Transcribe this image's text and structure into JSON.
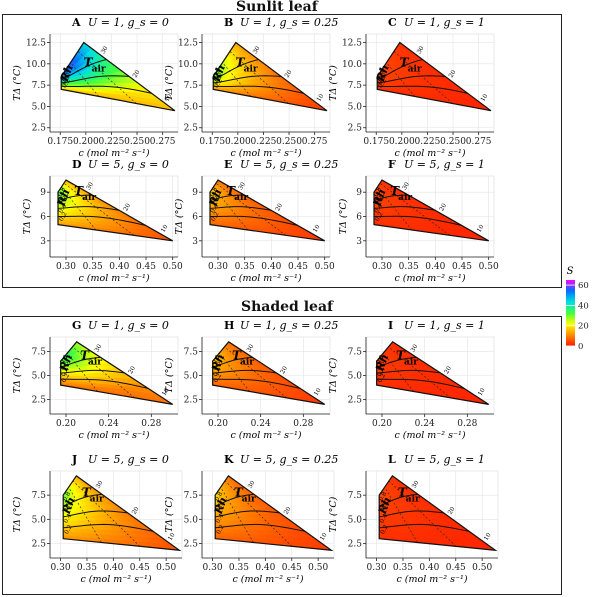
{
  "sections": [
    {
      "title": "Sunlit leaf"
    },
    {
      "title": "Shaded leaf"
    }
  ],
  "legend": {
    "title": "S",
    "ticks": [
      "60",
      "40",
      "20",
      "0"
    ],
    "tick_values": [
      60,
      40,
      20,
      0
    ],
    "range": [
      0,
      65
    ],
    "colors": [
      "#ff1a00",
      "#ff8c00",
      "#ffff00",
      "#40ff40",
      "#00e0e0",
      "#0070ff",
      "#ff00ff"
    ]
  },
  "common": {
    "xlabel": "c (mol m⁻² s⁻¹)",
    "ylabel": "TΔ (°C)",
    "rh_label": "Rh",
    "tair_label": "T",
    "tair_sub": "air",
    "rh_ticks": [
      "0.2",
      "0.4",
      "0.6",
      "0.8"
    ],
    "tair_ticks": [
      "30",
      "20",
      "10"
    ]
  },
  "chart_data": [
    {
      "type": "heatmap",
      "letter": "A",
      "title": "U = 1, g_s = 0",
      "xlim": [
        0.165,
        0.29
      ],
      "ylim": [
        2.0,
        13.5
      ],
      "xticks": [
        0.175,
        0.2,
        0.225,
        0.25,
        0.275
      ],
      "xtick_labels": [
        "0.175",
        "0.200",
        "0.225",
        "0.250",
        "0.275"
      ],
      "yticks": [
        2.5,
        5.0,
        7.5,
        10.0,
        12.5
      ],
      "ytick_labels": [
        "2.5",
        "5.0",
        "7.5",
        "10.0",
        "12.5"
      ],
      "corners": {
        "top_left": [
          0.176,
          8.5
        ],
        "top_right": [
          0.198,
          12.5
        ],
        "bottom_right": [
          0.287,
          4.5
        ],
        "bottom_left": [
          0.176,
          7.0
        ]
      },
      "s_range": [
        15,
        62
      ],
      "s_peak": "top-right"
    },
    {
      "type": "heatmap",
      "letter": "B",
      "title": "U = 1, g_s = 0.25",
      "xlim": [
        0.165,
        0.29
      ],
      "ylim": [
        2.0,
        13.5
      ],
      "xticks": [
        0.175,
        0.2,
        0.225,
        0.25,
        0.275
      ],
      "xtick_labels": [
        "0.175",
        "0.200",
        "0.225",
        "0.250",
        "0.275"
      ],
      "yticks": [
        2.5,
        5.0,
        7.5,
        10.0,
        12.5
      ],
      "ytick_labels": [
        "2.5",
        "5.0",
        "7.5",
        "10.0",
        "12.5"
      ],
      "corners": {
        "top_left": [
          0.176,
          8.5
        ],
        "top_right": [
          0.198,
          12.5
        ],
        "bottom_right": [
          0.287,
          4.5
        ],
        "bottom_left": [
          0.176,
          7.0
        ]
      },
      "s_range": [
        3,
        34
      ],
      "s_peak": "top-left"
    },
    {
      "type": "heatmap",
      "letter": "C",
      "title": "U = 1, g_s = 1",
      "xlim": [
        0.165,
        0.29
      ],
      "ylim": [
        2.0,
        13.5
      ],
      "xticks": [
        0.175,
        0.2,
        0.225,
        0.25,
        0.275
      ],
      "xtick_labels": [
        "0.175",
        "0.200",
        "0.225",
        "0.250",
        "0.275"
      ],
      "yticks": [
        2.5,
        5.0,
        7.5,
        10.0,
        12.5
      ],
      "ytick_labels": [
        "2.5",
        "5.0",
        "7.5",
        "10.0",
        "12.5"
      ],
      "corners": {
        "top_left": [
          0.176,
          8.5
        ],
        "top_right": [
          0.198,
          12.5
        ],
        "bottom_right": [
          0.287,
          4.5
        ],
        "bottom_left": [
          0.176,
          7.0
        ]
      },
      "s_range": [
        1,
        5
      ],
      "s_peak": "top-left"
    },
    {
      "type": "heatmap",
      "letter": "D",
      "title": "U = 5, g_s = 0",
      "xlim": [
        0.27,
        0.51
      ],
      "ylim": [
        1.0,
        11.0
      ],
      "xticks": [
        0.3,
        0.35,
        0.4,
        0.45,
        0.5
      ],
      "xtick_labels": [
        "0.30",
        "0.35",
        "0.40",
        "0.45",
        "0.50"
      ],
      "yticks": [
        3,
        6,
        9
      ],
      "ytick_labels": [
        "3",
        "6",
        "9"
      ],
      "corners": {
        "top_left": [
          0.285,
          9.0
        ],
        "top_right": [
          0.3,
          10.5
        ],
        "bottom_right": [
          0.5,
          3.0
        ],
        "bottom_left": [
          0.285,
          5.0
        ]
      },
      "s_range": [
        5,
        35
      ],
      "s_peak": "top-left"
    },
    {
      "type": "heatmap",
      "letter": "E",
      "title": "U = 5, g_s = 0.25",
      "xlim": [
        0.27,
        0.51
      ],
      "ylim": [
        1.0,
        11.0
      ],
      "xticks": [
        0.3,
        0.35,
        0.4,
        0.45,
        0.5
      ],
      "xtick_labels": [
        "0.30",
        "0.35",
        "0.40",
        "0.45",
        "0.50"
      ],
      "yticks": [
        3,
        6,
        9
      ],
      "ytick_labels": [
        "3",
        "6",
        "9"
      ],
      "corners": {
        "top_left": [
          0.285,
          9.0
        ],
        "top_right": [
          0.3,
          10.5
        ],
        "bottom_right": [
          0.5,
          3.0
        ],
        "bottom_left": [
          0.285,
          5.0
        ]
      },
      "s_range": [
        3,
        19
      ],
      "s_peak": "top-left"
    },
    {
      "type": "heatmap",
      "letter": "F",
      "title": "U = 5, g_s = 1",
      "xlim": [
        0.27,
        0.51
      ],
      "ylim": [
        1.0,
        11.0
      ],
      "xticks": [
        0.3,
        0.35,
        0.4,
        0.45,
        0.5
      ],
      "xtick_labels": [
        "0.30",
        "0.35",
        "0.40",
        "0.45",
        "0.50"
      ],
      "yticks": [
        3,
        6,
        9
      ],
      "ytick_labels": [
        "3",
        "6",
        "9"
      ],
      "corners": {
        "top_left": [
          0.285,
          9.0
        ],
        "top_right": [
          0.3,
          10.5
        ],
        "bottom_right": [
          0.5,
          3.0
        ],
        "bottom_left": [
          0.285,
          5.0
        ]
      },
      "s_range": [
        1,
        5
      ],
      "s_peak": "top-left"
    },
    {
      "type": "heatmap",
      "letter": "G",
      "title": "U = 1, g_s = 0",
      "xlim": [
        0.185,
        0.305
      ],
      "ylim": [
        1.0,
        9.0
      ],
      "xticks": [
        0.2,
        0.24,
        0.28
      ],
      "xtick_labels": [
        "0.20",
        "0.24",
        "0.28"
      ],
      "yticks": [
        2.5,
        5.0,
        7.5
      ],
      "ytick_labels": [
        "2.5",
        "5.0",
        "7.5"
      ],
      "corners": {
        "top_left": [
          0.195,
          6.5
        ],
        "top_right": [
          0.21,
          8.5
        ],
        "bottom_right": [
          0.3,
          2.0
        ],
        "bottom_left": [
          0.195,
          4.0
        ]
      },
      "s_range": [
        8,
        38
      ],
      "s_peak": "top-right"
    },
    {
      "type": "heatmap",
      "letter": "H",
      "title": "U = 1, g_s = 0.25",
      "xlim": [
        0.185,
        0.305
      ],
      "ylim": [
        1.0,
        9.0
      ],
      "xticks": [
        0.2,
        0.24,
        0.28
      ],
      "xtick_labels": [
        "0.20",
        "0.24",
        "0.28"
      ],
      "yticks": [
        2.5,
        5.0,
        7.5
      ],
      "ytick_labels": [
        "2.5",
        "5.0",
        "7.5"
      ],
      "corners": {
        "top_left": [
          0.195,
          6.5
        ],
        "top_right": [
          0.21,
          8.5
        ],
        "bottom_right": [
          0.3,
          2.0
        ],
        "bottom_left": [
          0.195,
          4.0
        ]
      },
      "s_range": [
        3,
        18
      ],
      "s_peak": "top-left"
    },
    {
      "type": "heatmap",
      "letter": "I",
      "title": "U = 1, g_s = 1",
      "xlim": [
        0.185,
        0.305
      ],
      "ylim": [
        1.0,
        9.0
      ],
      "xticks": [
        0.2,
        0.24,
        0.28
      ],
      "xtick_labels": [
        "0.20",
        "0.24",
        "0.28"
      ],
      "yticks": [
        2.5,
        5.0,
        7.5
      ],
      "ytick_labels": [
        "2.5",
        "5.0",
        "7.5"
      ],
      "corners": {
        "top_left": [
          0.195,
          6.5
        ],
        "top_right": [
          0.21,
          8.5
        ],
        "bottom_right": [
          0.3,
          2.0
        ],
        "bottom_left": [
          0.195,
          4.0
        ]
      },
      "s_range": [
        1,
        4
      ],
      "s_peak": "top-left"
    },
    {
      "type": "heatmap",
      "letter": "J",
      "title": "U = 5, g_s = 0",
      "xlim": [
        0.28,
        0.53
      ],
      "ylim": [
        1.0,
        10.0
      ],
      "xticks": [
        0.3,
        0.35,
        0.4,
        0.45,
        0.5
      ],
      "xtick_labels": [
        "0.30",
        "0.35",
        "0.40",
        "0.45",
        "0.50"
      ],
      "yticks": [
        2.5,
        5.0,
        7.5
      ],
      "ytick_labels": [
        "2.5",
        "5.0",
        "7.5"
      ],
      "corners": {
        "top_left": [
          0.305,
          7.5
        ],
        "top_right": [
          0.33,
          9.5
        ],
        "bottom_right": [
          0.525,
          1.8
        ],
        "bottom_left": [
          0.305,
          3.0
        ]
      },
      "s_range": [
        5,
        32
      ],
      "s_peak": "top-left"
    },
    {
      "type": "heatmap",
      "letter": "K",
      "title": "U = 5, g_s = 0.25",
      "xlim": [
        0.28,
        0.53
      ],
      "ylim": [
        1.0,
        10.0
      ],
      "xticks": [
        0.3,
        0.35,
        0.4,
        0.45,
        0.5
      ],
      "xtick_labels": [
        "0.30",
        "0.35",
        "0.40",
        "0.45",
        "0.50"
      ],
      "yticks": [
        2.5,
        5.0,
        7.5
      ],
      "ytick_labels": [
        "2.5",
        "5.0",
        "7.5"
      ],
      "corners": {
        "top_left": [
          0.305,
          7.5
        ],
        "top_right": [
          0.33,
          9.5
        ],
        "bottom_right": [
          0.525,
          1.8
        ],
        "bottom_left": [
          0.305,
          3.0
        ]
      },
      "s_range": [
        3,
        19
      ],
      "s_peak": "top-left"
    },
    {
      "type": "heatmap",
      "letter": "L",
      "title": "U = 5, g_s = 1",
      "xlim": [
        0.28,
        0.53
      ],
      "ylim": [
        1.0,
        10.0
      ],
      "xticks": [
        0.3,
        0.35,
        0.4,
        0.45,
        0.5
      ],
      "xtick_labels": [
        "0.30",
        "0.35",
        "0.40",
        "0.45",
        "0.50"
      ],
      "yticks": [
        2.5,
        5.0,
        7.5
      ],
      "ytick_labels": [
        "2.5",
        "5.0",
        "7.5"
      ],
      "corners": {
        "top_left": [
          0.305,
          7.5
        ],
        "top_right": [
          0.33,
          9.5
        ],
        "bottom_right": [
          0.525,
          1.8
        ],
        "bottom_left": [
          0.305,
          3.0
        ]
      },
      "s_range": [
        1,
        5
      ],
      "s_peak": "top-left"
    }
  ]
}
